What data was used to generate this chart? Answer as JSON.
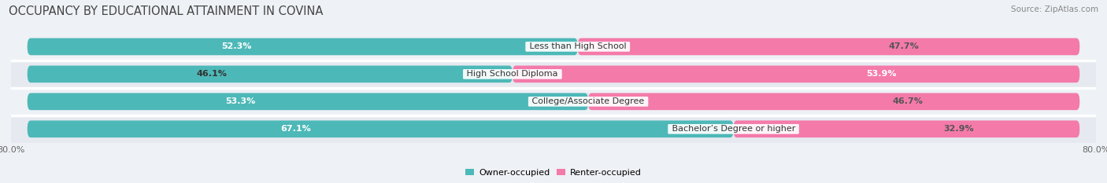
{
  "title": "OCCUPANCY BY EDUCATIONAL ATTAINMENT IN COVINA",
  "source": "Source: ZipAtlas.com",
  "categories": [
    "Less than High School",
    "High School Diploma",
    "College/Associate Degree",
    "Bachelor’s Degree or higher"
  ],
  "owner_pct": [
    52.3,
    46.1,
    53.3,
    67.1
  ],
  "renter_pct": [
    47.7,
    53.9,
    46.7,
    32.9
  ],
  "owner_color": "#4db8b8",
  "renter_color": "#f47aaa",
  "bar_height": 0.62,
  "total_width": 100.0,
  "background_color": "#eef1f5",
  "bar_bg_color": "#e2e6ec",
  "row_bg_even": "#eef1f5",
  "row_bg_odd": "#e6eaf0",
  "title_fontsize": 10.5,
  "label_fontsize": 8.0,
  "pct_fontsize": 8.0,
  "tick_fontsize": 8.0,
  "source_fontsize": 7.5,
  "left_tick": "80.0%",
  "right_tick": "80.0%"
}
